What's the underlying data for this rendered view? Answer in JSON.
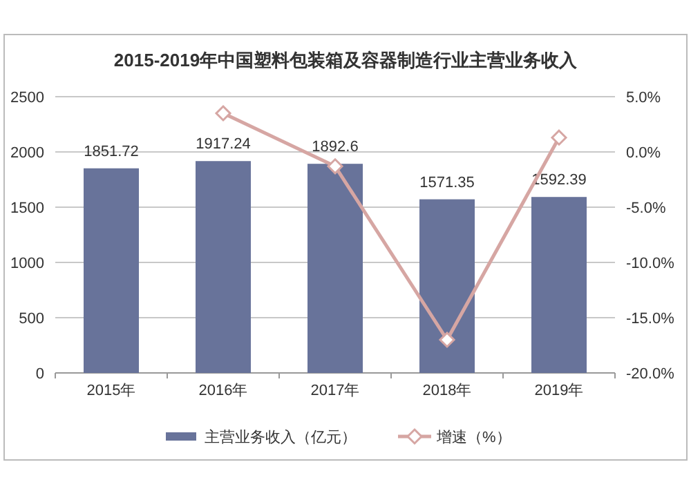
{
  "chart_data": {
    "type": "bar",
    "title": "2015-2019年中国塑料包装箱及容器制造行业主营业务收入",
    "categories": [
      "2015年",
      "2016年",
      "2017年",
      "2018年",
      "2019年"
    ],
    "series": [
      {
        "name": "主营业务收入（亿元）",
        "color": "#68739a",
        "values": [
          1851.72,
          1917.24,
          1892.6,
          1571.35,
          1592.39
        ],
        "value_labels": [
          "1851.72",
          "1917.24",
          "1892.6",
          "1571.35",
          "1592.39"
        ]
      },
      {
        "name": "增速（%）",
        "type": "line",
        "axis": "y2",
        "color": "#d6a6a3",
        "marker": "diamond",
        "values": [
          null,
          3.5,
          -1.3,
          -17.0,
          1.3
        ]
      }
    ],
    "ylim": [
      0,
      2500
    ],
    "yticks": [
      0,
      500,
      1000,
      1500,
      2000,
      2500
    ],
    "y2lim": [
      -20,
      5
    ],
    "y2ticks": [
      {
        "value": -20,
        "label": "-20.0%"
      },
      {
        "value": -15,
        "label": "-15.0%"
      },
      {
        "value": -10,
        "label": "-10.0%"
      },
      {
        "value": -5,
        "label": "-5.0%"
      },
      {
        "value": 0,
        "label": "0.0%"
      },
      {
        "value": 5,
        "label": "5.0%"
      }
    ],
    "grid": "y",
    "legend": "bottom"
  }
}
